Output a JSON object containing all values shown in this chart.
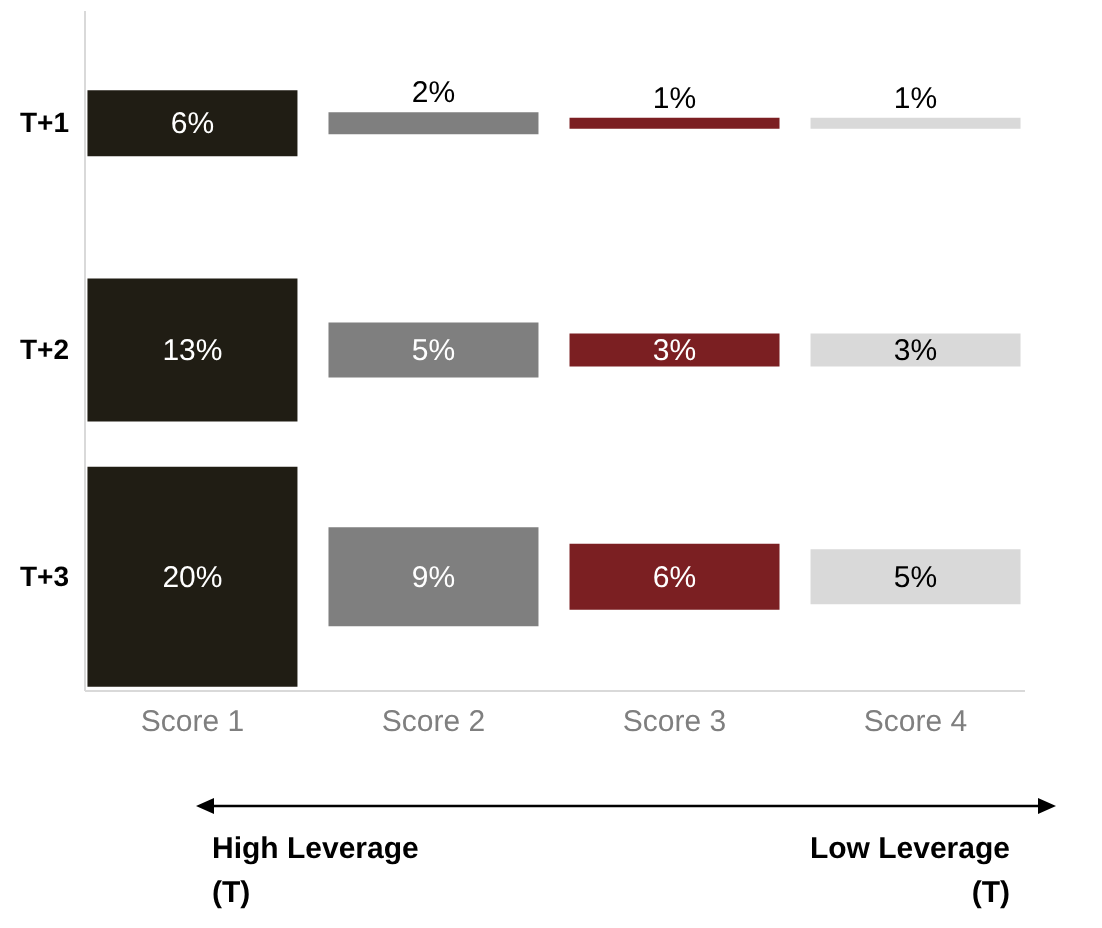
{
  "chart_data": {
    "type": "heatmap",
    "categories": [
      "Score 1",
      "Score 2",
      "Score 3",
      "Score 4"
    ],
    "y_categories": [
      "T+1",
      "T+2",
      "T+3"
    ],
    "cells": [
      [
        6,
        2,
        1,
        1
      ],
      [
        13,
        5,
        3,
        3
      ],
      [
        20,
        9,
        6,
        5
      ]
    ],
    "cell_labels": [
      [
        "6%",
        "2%",
        "1%",
        "1%"
      ],
      [
        "13%",
        "5%",
        "3%",
        "3%"
      ],
      [
        "20%",
        "9%",
        "6%",
        "5%"
      ]
    ],
    "colors": [
      "#201d14",
      "#7f7f7f",
      "#7b1f22",
      "#d9d9d9"
    ],
    "annotations": [
      "High Leverage (T)",
      "Low Leverage (T)"
    ]
  }
}
